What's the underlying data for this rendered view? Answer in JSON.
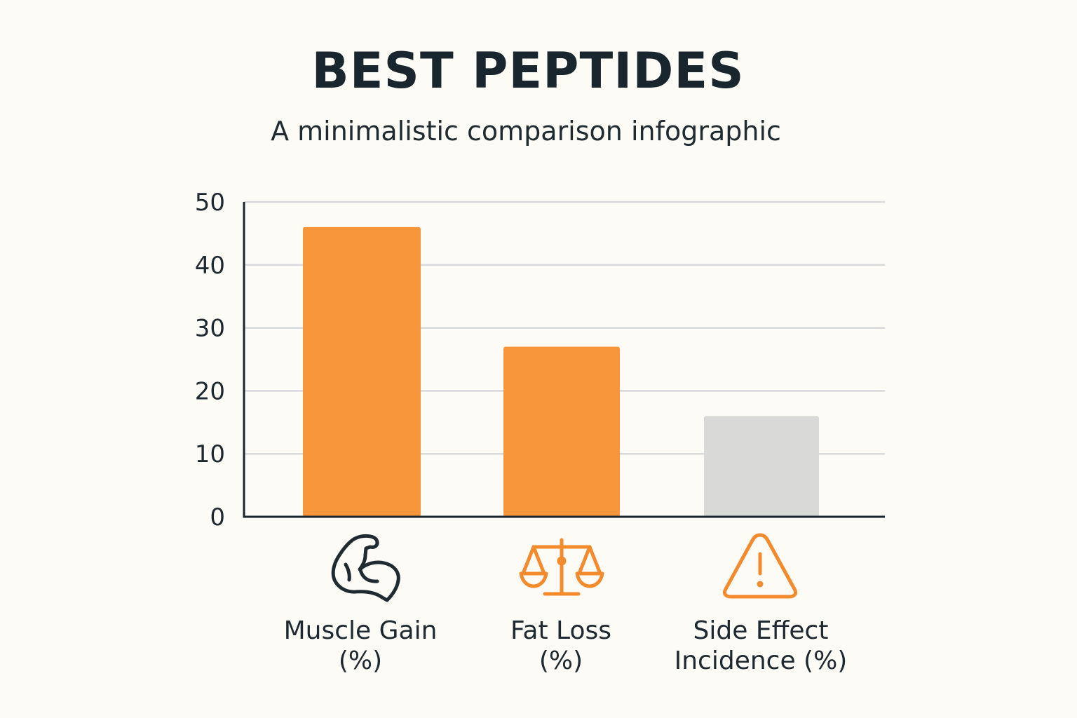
{
  "header": {
    "title": "BEST PEPTIDES",
    "subtitle": "A minimalistic comparison infographic"
  },
  "chart_data": {
    "type": "bar",
    "title": "BEST PEPTIDES",
    "subtitle": "A minimalistic comparison infographic",
    "xlabel": "",
    "ylabel": "",
    "ylim": [
      0,
      50
    ],
    "yticks": [
      0,
      10,
      20,
      30,
      40,
      50
    ],
    "grid": true,
    "categories": [
      {
        "lines": [
          "Muscle Gain",
          "(%)"
        ],
        "icon": "flexed-bicep-icon",
        "color": "#f7953a"
      },
      {
        "lines": [
          "Fat Loss",
          "(%)"
        ],
        "icon": "balance-scale-icon",
        "color": "#f7953a"
      },
      {
        "lines": [
          "Side Effect",
          "Incidence (%)"
        ],
        "icon": "warning-triangle-icon",
        "color": "#d9dad8"
      }
    ],
    "values": [
      46,
      27,
      16
    ]
  },
  "colors": {
    "accent": "#f7953a",
    "neutral_bar": "#d9dad8",
    "gridline": "#d7d9da",
    "axis": "#1a262e",
    "icon_dark": "#1f2a31",
    "icon_orange": "#f38a2c",
    "background": "#fcfbf6"
  }
}
